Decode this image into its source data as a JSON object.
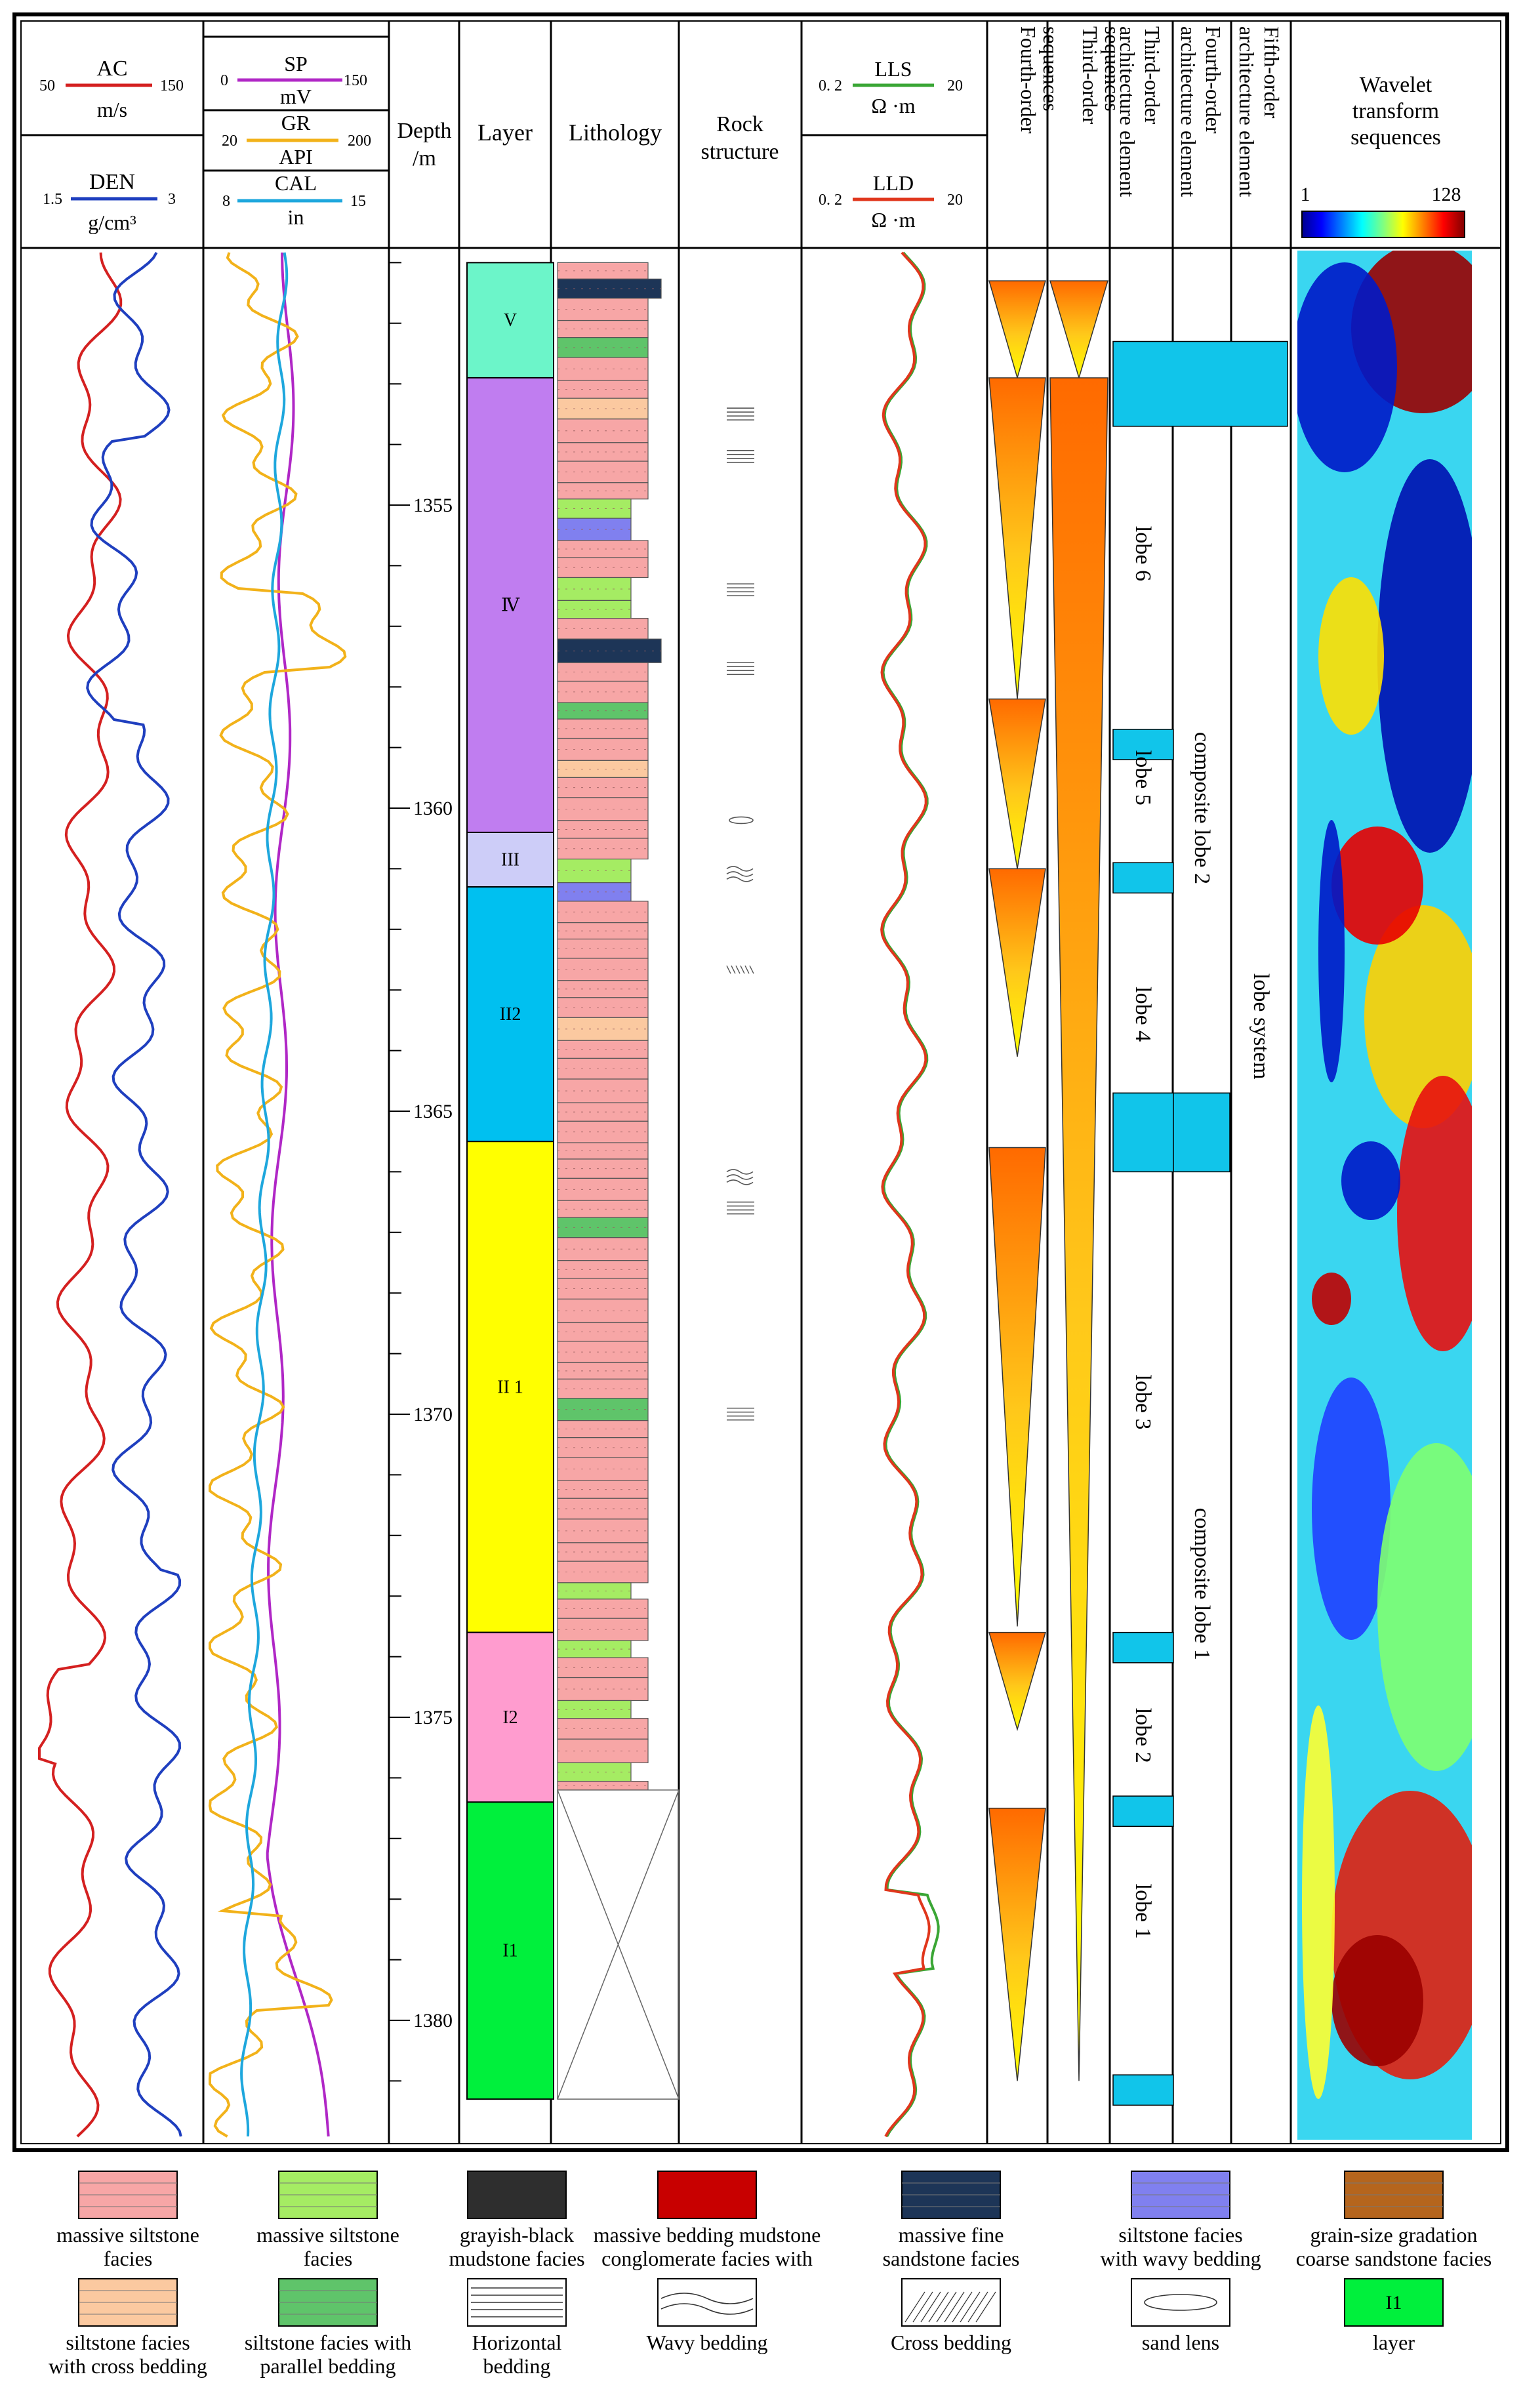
{
  "headers": {
    "ac": {
      "label": "AC",
      "min": "50",
      "max": "150",
      "unit": "m/s",
      "color": "#d42020"
    },
    "den": {
      "label": "DEN",
      "min": "1.5",
      "max": "3",
      "unit": "g/cm³",
      "color": "#1f3fbf"
    },
    "sp": {
      "label": "SP",
      "min": "0",
      "max": "150",
      "unit": "mV",
      "color": "#b027c6"
    },
    "gr": {
      "label": "GR",
      "min": "20",
      "max": "200",
      "unit": "API",
      "color": "#f2b21a"
    },
    "cal": {
      "label": "CAL",
      "min": "8",
      "max": "15",
      "unit": "in",
      "color": "#1ea7dd"
    },
    "depth": {
      "line1": "Depth",
      "line2": "/m"
    },
    "layer": "Layer",
    "lithology": "Lithology",
    "rock_structure": {
      "line1": "Rock",
      "line2": "structure"
    },
    "lls": {
      "label": "LLS",
      "min": "0. 2",
      "max": "20",
      "unit": "Ω ·m",
      "color": "#3aa635"
    },
    "lld": {
      "label": "LLD",
      "min": "0. 2",
      "max": "20",
      "unit": "Ω ·m",
      "color": "#e0361c"
    },
    "fourth_seq": {
      "line1": "Fourth-order",
      "line2": "sequences"
    },
    "third_seq": {
      "line1": "Third-order",
      "line2": "sequences"
    },
    "third_arch": {
      "line1": "Third-order",
      "line2": "architecture element"
    },
    "fourth_arch": {
      "line1": "Fourth-order",
      "line2": "architecture element"
    },
    "fifth_arch": {
      "line1": "Fifth-order",
      "line2": "architecture element"
    },
    "wavelet": {
      "line1": "Wavelet",
      "line2": "transform",
      "line3": "sequences",
      "min": "1",
      "max": "128"
    }
  },
  "depth_ticks": [
    "1355",
    "1360",
    "1365",
    "1370",
    "1375",
    "1380"
  ],
  "layers": [
    {
      "label": "V",
      "top": 1351.0,
      "bottom": 1352.9,
      "color": "#6cf5c9"
    },
    {
      "label": "Ⅳ",
      "top": 1352.9,
      "bottom": 1360.4,
      "color": "#c07df0"
    },
    {
      "label": "III",
      "top": 1360.4,
      "bottom": 1361.3,
      "color": "#cdcdf8"
    },
    {
      "label": "II2",
      "top": 1361.3,
      "bottom": 1365.5,
      "color": "#00c0f0"
    },
    {
      "label": "II 1",
      "top": 1365.5,
      "bottom": 1373.6,
      "color": "#ffff00"
    },
    {
      "label": "I2",
      "top": 1373.6,
      "bottom": 1376.4,
      "color": "#ff9ccf"
    },
    {
      "label": "I1",
      "top": 1376.4,
      "bottom": 1381.3,
      "color": "#00f03c"
    }
  ],
  "architecture": {
    "third_order": [
      "lobe 6",
      "lobe 5",
      "lobe 4",
      "lobe 3",
      "lobe 2",
      "lobe 1"
    ],
    "fourth_order": [
      "composite lobe 2",
      "composite lobe 1"
    ],
    "fifth_order": "lobe system"
  },
  "legend": [
    {
      "line1": "massive siltstone",
      "line2": "facies",
      "pattern": "massive-siltstone"
    },
    {
      "line1": "massive siltstone",
      "line2": "facies",
      "pattern": "massive-siltstone-green"
    },
    {
      "line1": "grayish-black",
      "line2": "mudstone facies",
      "pattern": "mudstone"
    },
    {
      "line1": "massive bedding mudstone",
      "line2": "conglomerate facies with",
      "pattern": "conglomerate"
    },
    {
      "line1": "massive fine",
      "line2": "sandstone facies",
      "pattern": "fine-sandstone"
    },
    {
      "line1": "siltstone facies",
      "line2": "with wavy bedding",
      "pattern": "wavy-siltstone"
    },
    {
      "line1": "grain-size gradation",
      "line2": "coarse sandstone facies",
      "pattern": "coarse-sandstone"
    },
    {
      "line1": "siltstone facies",
      "line2": "with cross bedding",
      "pattern": "cross-siltstone"
    },
    {
      "line1": "siltstone facies with",
      "line2": "parallel bedding",
      "pattern": "parallel-siltstone"
    },
    {
      "line1": "Horizontal",
      "line2": "bedding",
      "pattern": "horizontal"
    },
    {
      "line1": "Wavy bedding",
      "line2": "",
      "pattern": "wavy"
    },
    {
      "line1": "Cross bedding",
      "line2": "",
      "pattern": "cross"
    },
    {
      "line1": "sand lens",
      "line2": "",
      "pattern": "lens"
    },
    {
      "line1": "layer",
      "line2": "",
      "pattern": "layer",
      "swatch_label": "I1"
    }
  ]
}
